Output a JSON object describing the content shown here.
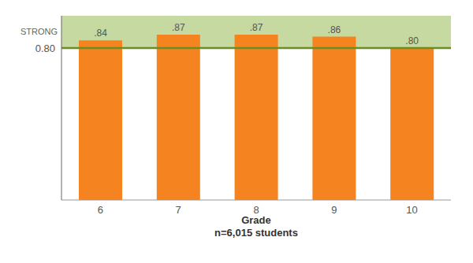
{
  "chart_data": {
    "type": "bar",
    "categories": [
      "6",
      "7",
      "8",
      "9",
      "10"
    ],
    "values": [
      0.84,
      0.87,
      0.87,
      0.86,
      0.8
    ],
    "value_labels": [
      ".84",
      ".87",
      ".87",
      ".86",
      ".80"
    ],
    "data_labels": true,
    "color": "#F5831F",
    "xlabel": "Grade\nn=6,015 students",
    "ylim": [
      0.0,
      0.97
    ],
    "yticks": [
      {
        "value": 0.8,
        "label": "0.80"
      }
    ],
    "grid": false,
    "bands": [
      {
        "label": "STRONG",
        "from": 0.8,
        "to": 0.97,
        "color": "#C5D9A0",
        "line_color": "#6B8E23"
      }
    ]
  }
}
